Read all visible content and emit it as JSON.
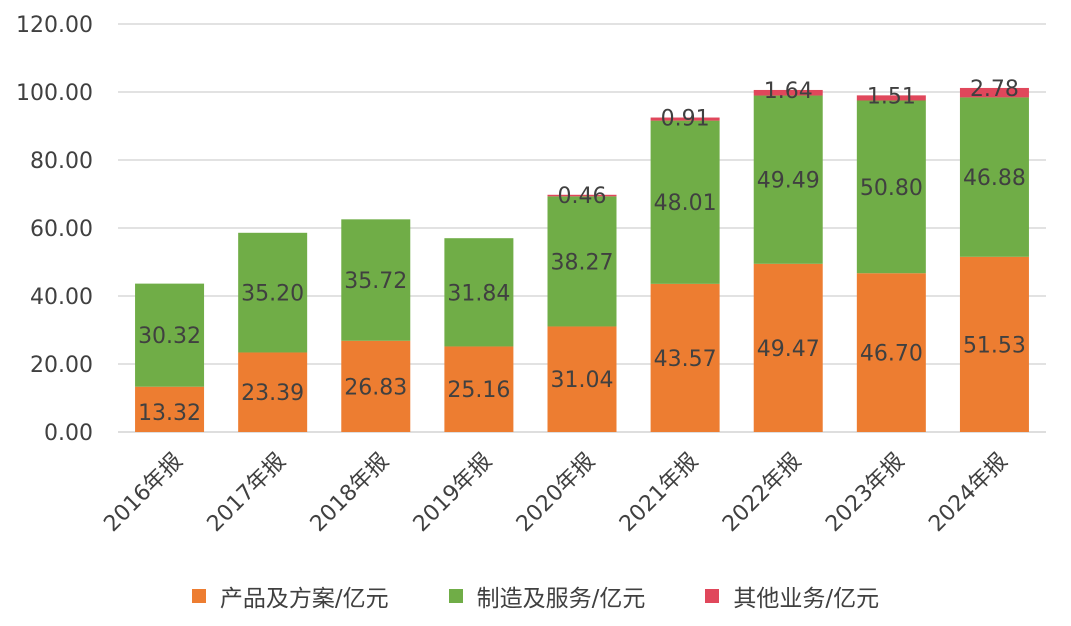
{
  "chart_data": {
    "type": "bar",
    "stacked": true,
    "categories": [
      "2016年报",
      "2017年报",
      "2018年报",
      "2019年报",
      "2020年报",
      "2021年报",
      "2022年报",
      "2023年报",
      "2024年报"
    ],
    "series": [
      {
        "name": "产品及方案/亿元",
        "color": "#ED7D31",
        "values": [
          13.32,
          23.39,
          26.83,
          25.16,
          31.04,
          43.57,
          49.47,
          46.7,
          51.53
        ],
        "labels": [
          "13.32",
          "23.39",
          "26.83",
          "25.16",
          "31.04",
          "43.57",
          "49.47",
          "46.70",
          "51.53"
        ]
      },
      {
        "name": "制造及服务/亿元",
        "color": "#70AD47",
        "values": [
          30.32,
          35.2,
          35.72,
          31.84,
          38.27,
          48.01,
          49.49,
          50.8,
          46.88
        ],
        "labels": [
          "30.32",
          "35.20",
          "35.72",
          "31.84",
          "38.27",
          "48.01",
          "49.49",
          "50.80",
          "46.88"
        ]
      },
      {
        "name": "其他业务/亿元",
        "color": "#E0475B",
        "values": [
          null,
          null,
          null,
          null,
          0.46,
          0.91,
          1.64,
          1.51,
          2.78
        ],
        "labels": [
          null,
          null,
          null,
          null,
          "0.46",
          "0.91",
          "1.64",
          "1.51",
          "2.78"
        ]
      }
    ],
    "ylim": [
      0,
      120
    ],
    "yticks": [
      0,
      20,
      40,
      60,
      80,
      100,
      120
    ],
    "ytick_labels": [
      "0.00",
      "20.00",
      "40.00",
      "60.00",
      "80.00",
      "100.00",
      "120.00"
    ],
    "grid": true,
    "legend_position": "bottom",
    "gridline_color": "#D9D9D9"
  }
}
